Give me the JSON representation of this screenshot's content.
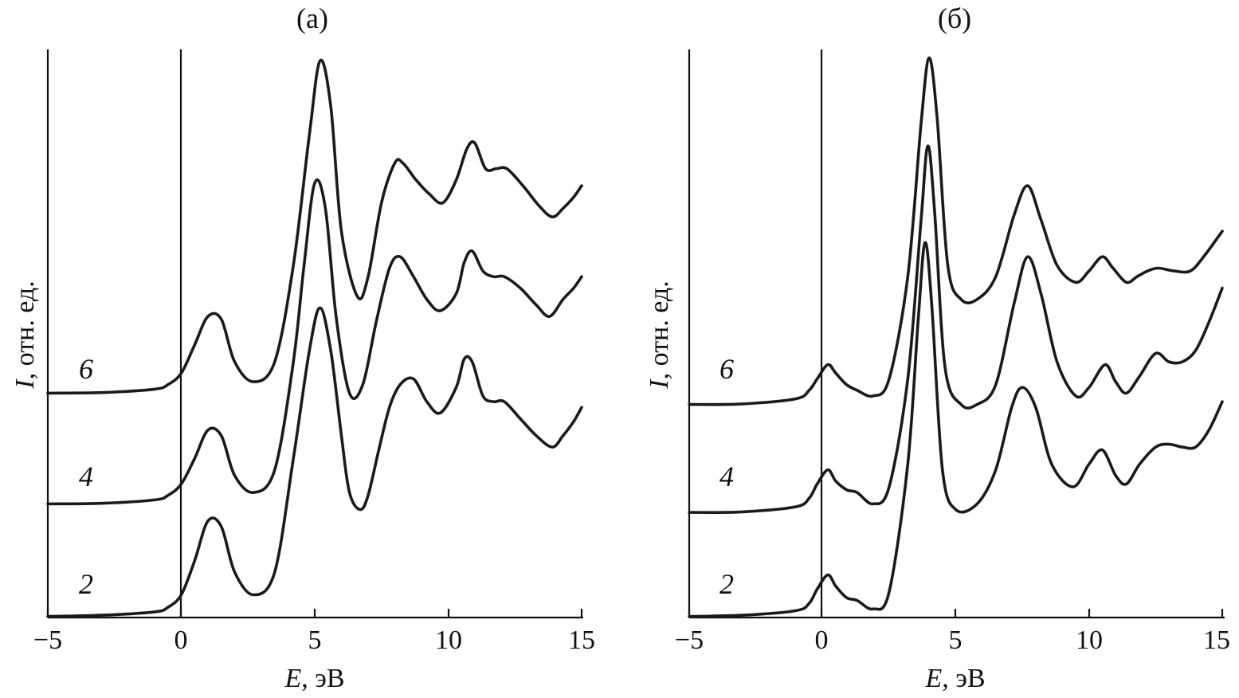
{
  "chart_data": [
    {
      "type": "line",
      "title": "(а)",
      "xlabel_var": "E",
      "xlabel_unit": ", эВ",
      "ylabel_var": "I",
      "ylabel_unit": ", отн. ед.",
      "xlim": [
        -5,
        15
      ],
      "xticks": [
        -5,
        0,
        5,
        10,
        15
      ],
      "xtick_labels": [
        "−5",
        "0",
        "5",
        "10",
        "15"
      ],
      "ylim": [
        0,
        1
      ],
      "zero_line": 0,
      "series": [
        {
          "label": "6",
          "x": [
            -5,
            -3,
            -1,
            -0.5,
            0,
            0.5,
            1.0,
            1.5,
            2.0,
            2.7,
            3.5,
            4.2,
            4.8,
            5.2,
            5.6,
            6.0,
            6.6,
            7.0,
            7.5,
            8.0,
            8.3,
            8.8,
            9.3,
            9.8,
            10.3,
            10.7,
            11.0,
            11.4,
            11.8,
            12.2,
            12.8,
            13.4,
            13.9,
            14.3,
            14.7,
            15.0
          ],
          "y": [
            0.395,
            0.396,
            0.402,
            0.41,
            0.43,
            0.48,
            0.53,
            0.525,
            0.45,
            0.415,
            0.45,
            0.62,
            0.85,
            0.98,
            0.9,
            0.68,
            0.565,
            0.6,
            0.73,
            0.8,
            0.8,
            0.77,
            0.745,
            0.73,
            0.77,
            0.825,
            0.835,
            0.79,
            0.79,
            0.79,
            0.76,
            0.725,
            0.705,
            0.72,
            0.74,
            0.76
          ]
        },
        {
          "label": "4",
          "x": [
            -5,
            -3,
            -1,
            -0.5,
            0,
            0.5,
            1.0,
            1.5,
            2.0,
            2.7,
            3.5,
            4.2,
            4.6,
            5.0,
            5.4,
            5.8,
            6.3,
            6.8,
            7.3,
            7.8,
            8.2,
            8.7,
            9.2,
            9.7,
            10.3,
            10.6,
            10.9,
            11.3,
            11.7,
            12.1,
            12.7,
            13.3,
            13.8,
            14.3,
            14.7,
            15.0
          ],
          "y": [
            0.2,
            0.201,
            0.207,
            0.215,
            0.235,
            0.28,
            0.33,
            0.32,
            0.25,
            0.22,
            0.26,
            0.45,
            0.62,
            0.765,
            0.72,
            0.53,
            0.395,
            0.41,
            0.52,
            0.615,
            0.635,
            0.6,
            0.56,
            0.54,
            0.57,
            0.625,
            0.645,
            0.61,
            0.6,
            0.6,
            0.58,
            0.55,
            0.53,
            0.56,
            0.58,
            0.6
          ]
        },
        {
          "label": "2",
          "x": [
            -5,
            -3,
            -1,
            -0.5,
            0,
            0.5,
            1.0,
            1.5,
            2.0,
            2.7,
            3.5,
            4.2,
            4.8,
            5.2,
            5.6,
            6.0,
            6.3,
            6.7,
            7.0,
            7.4,
            7.8,
            8.2,
            8.7,
            9.2,
            9.7,
            10.3,
            10.6,
            10.9,
            11.3,
            11.7,
            12.1,
            12.7,
            13.3,
            13.9,
            14.3,
            14.7,
            15.0
          ],
          "y": [
            0.002,
            0.004,
            0.01,
            0.018,
            0.04,
            0.1,
            0.17,
            0.16,
            0.08,
            0.04,
            0.08,
            0.28,
            0.47,
            0.545,
            0.47,
            0.32,
            0.22,
            0.19,
            0.215,
            0.295,
            0.37,
            0.41,
            0.42,
            0.38,
            0.36,
            0.405,
            0.455,
            0.45,
            0.39,
            0.38,
            0.38,
            0.35,
            0.32,
            0.3,
            0.32,
            0.345,
            0.37
          ]
        }
      ]
    },
    {
      "type": "line",
      "title": "(б)",
      "xlabel_var": "E",
      "xlabel_unit": ", эВ",
      "ylabel_var": "I",
      "ylabel_unit": ", отн. ед.",
      "xlim": [
        -5,
        15
      ],
      "xticks": [
        -5,
        0,
        5,
        10,
        15
      ],
      "xtick_labels": [
        "−5",
        "0",
        "5",
        "10",
        "15"
      ],
      "ylim": [
        0,
        1
      ],
      "zero_line": 0,
      "series": [
        {
          "label": "6",
          "x": [
            -5,
            -3,
            -1,
            -0.5,
            -0.2,
            0.2,
            0.5,
            0.9,
            1.3,
            1.9,
            2.5,
            3.2,
            3.7,
            4.0,
            4.3,
            4.7,
            5.2,
            5.8,
            6.5,
            7.2,
            7.7,
            8.2,
            8.8,
            9.5,
            10.0,
            10.5,
            10.9,
            11.4,
            11.8,
            12.2,
            12.6,
            13.2,
            13.8,
            14.3,
            15.0
          ],
          "y": [
            0.375,
            0.376,
            0.385,
            0.4,
            0.42,
            0.445,
            0.43,
            0.41,
            0.4,
            0.39,
            0.42,
            0.6,
            0.87,
            0.985,
            0.88,
            0.62,
            0.56,
            0.56,
            0.6,
            0.71,
            0.76,
            0.7,
            0.62,
            0.59,
            0.61,
            0.635,
            0.615,
            0.59,
            0.6,
            0.61,
            0.615,
            0.61,
            0.61,
            0.635,
            0.68
          ]
        },
        {
          "label": "4",
          "x": [
            -5,
            -3,
            -1,
            -0.5,
            -0.2,
            0.2,
            0.5,
            0.9,
            1.3,
            1.9,
            2.5,
            3.2,
            3.7,
            3.95,
            4.2,
            4.6,
            5.2,
            5.8,
            6.5,
            7.2,
            7.7,
            8.2,
            8.8,
            9.5,
            10.0,
            10.6,
            11.0,
            11.4,
            11.9,
            12.5,
            13.0,
            13.5,
            14.0,
            14.5,
            15.0
          ],
          "y": [
            0.185,
            0.186,
            0.195,
            0.21,
            0.235,
            0.26,
            0.24,
            0.225,
            0.22,
            0.2,
            0.23,
            0.42,
            0.7,
            0.83,
            0.72,
            0.44,
            0.375,
            0.375,
            0.41,
            0.555,
            0.635,
            0.57,
            0.45,
            0.39,
            0.405,
            0.445,
            0.415,
            0.395,
            0.425,
            0.465,
            0.45,
            0.45,
            0.47,
            0.52,
            0.58
          ]
        },
        {
          "label": "2",
          "x": [
            -5,
            -3,
            -1,
            -0.5,
            -0.2,
            0.2,
            0.5,
            0.9,
            1.3,
            1.9,
            2.5,
            3.2,
            3.6,
            3.85,
            4.1,
            4.5,
            5.0,
            5.8,
            6.5,
            7.1,
            7.5,
            8.0,
            8.6,
            9.4,
            10.0,
            10.5,
            11.0,
            11.4,
            11.9,
            12.5,
            13.0,
            13.5,
            14.0,
            14.5,
            15.0
          ],
          "y": [
            0.002,
            0.004,
            0.012,
            0.025,
            0.05,
            0.075,
            0.055,
            0.035,
            0.03,
            0.015,
            0.045,
            0.27,
            0.53,
            0.66,
            0.55,
            0.26,
            0.19,
            0.2,
            0.26,
            0.37,
            0.405,
            0.37,
            0.27,
            0.23,
            0.27,
            0.295,
            0.25,
            0.235,
            0.27,
            0.3,
            0.305,
            0.3,
            0.3,
            0.33,
            0.38
          ]
        }
      ]
    }
  ]
}
